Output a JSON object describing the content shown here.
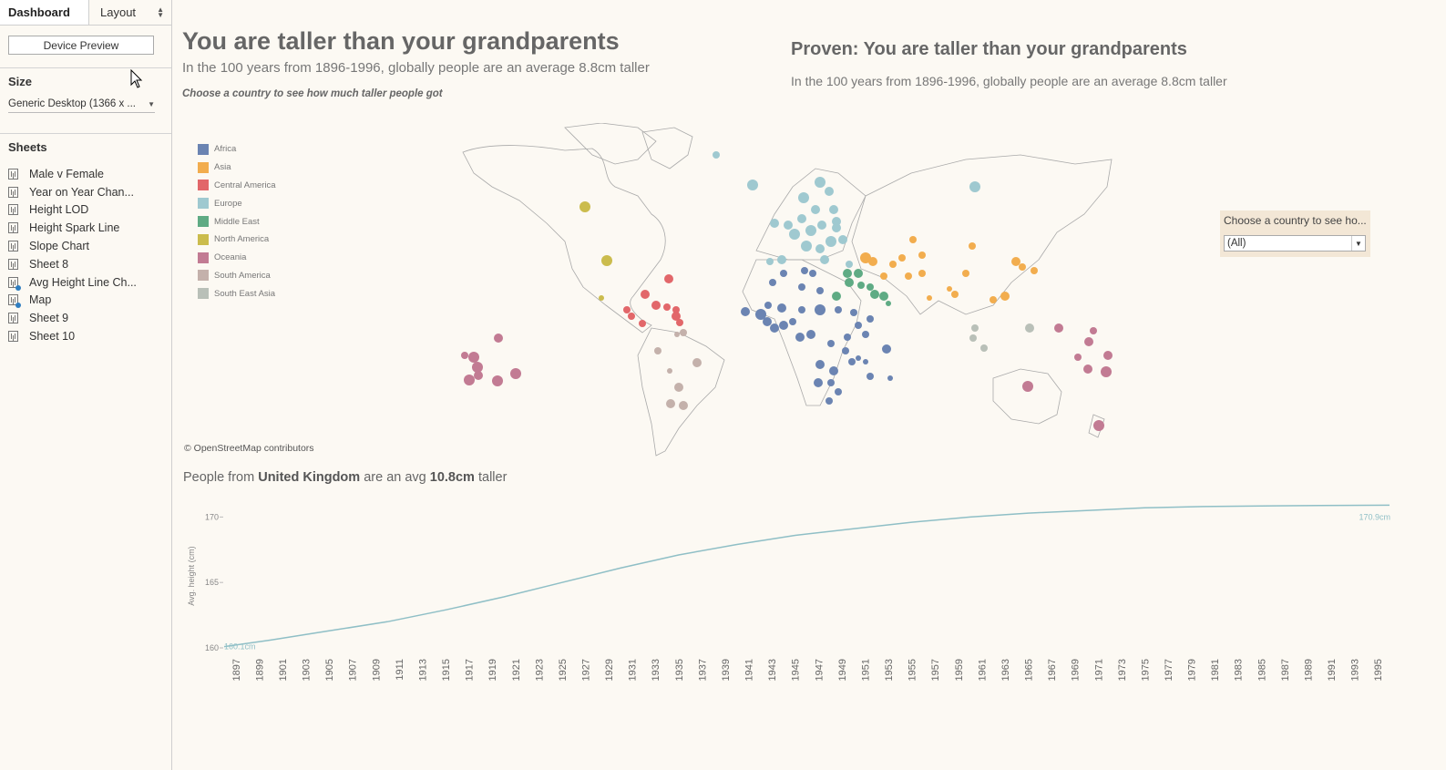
{
  "sidebar": {
    "tabs": {
      "dashboard": "Dashboard",
      "layout": "Layout"
    },
    "device_preview": "Device Preview",
    "size_label": "Size",
    "size_value": "Generic Desktop (1366 x ...",
    "sheets_label": "Sheets",
    "sheets": [
      {
        "label": "Male v Female"
      },
      {
        "label": "Year on Year Chan..."
      },
      {
        "label": "Height LOD"
      },
      {
        "label": "Height Spark Line"
      },
      {
        "label": "Slope Chart"
      },
      {
        "label": "Sheet 8"
      },
      {
        "label": "Avg Height Line Ch..."
      },
      {
        "label": "Map"
      },
      {
        "label": "Sheet 9"
      },
      {
        "label": "Sheet 10"
      }
    ]
  },
  "dashboard": {
    "title": "You are taller than your grandparents",
    "subtitle": "In the 100 years from 1896-1996, globally people are an average 8.8cm taller",
    "hint": "Choose a country to see how much taller people got",
    "right_title": "Proven: You are taller than your grandparents",
    "right_subtitle": "In the 100 years from 1896-1996, globally people are an average 8.8cm taller",
    "osm_credit": "© OpenStreetMap contributors",
    "filter": {
      "label": "Choose a country to see ho...",
      "value": "(All)"
    },
    "caption": {
      "prefix": "People from ",
      "country": "United Kingdom",
      "middle": " are an avg ",
      "amount": "10.8cm",
      "suffix": " taller"
    }
  },
  "legend": [
    {
      "label": "Africa",
      "color": "#6b84b2"
    },
    {
      "label": "Asia",
      "color": "#f2ad4e"
    },
    {
      "label": "Central America",
      "color": "#e2676a"
    },
    {
      "label": "Europe",
      "color": "#9fc9d0"
    },
    {
      "label": "Middle East",
      "color": "#5fab84"
    },
    {
      "label": "North America",
      "color": "#cbbc4d"
    },
    {
      "label": "Oceania",
      "color": "#c27b93"
    },
    {
      "label": "South America",
      "color": "#c4b1ab"
    },
    {
      "label": "South East Asia",
      "color": "#b9c0b8"
    }
  ],
  "chart_data": {
    "type": "line",
    "ylabel": "Avg. height (cm)",
    "ylim": [
      160,
      171
    ],
    "yticks": [
      160,
      165,
      170
    ],
    "xticks": [
      1897,
      1899,
      1901,
      1903,
      1905,
      1907,
      1909,
      1911,
      1913,
      1915,
      1917,
      1919,
      1921,
      1923,
      1925,
      1927,
      1929,
      1931,
      1933,
      1935,
      1937,
      1939,
      1941,
      1943,
      1945,
      1947,
      1949,
      1951,
      1953,
      1955,
      1957,
      1959,
      1961,
      1963,
      1965,
      1967,
      1969,
      1971,
      1973,
      1975,
      1977,
      1979,
      1981,
      1983,
      1985,
      1987,
      1989,
      1991,
      1993,
      1995
    ],
    "series": [
      {
        "x": [
          1896,
          1900,
          1905,
          1910,
          1915,
          1920,
          1925,
          1930,
          1935,
          1940,
          1945,
          1950,
          1955,
          1960,
          1965,
          1970,
          1975,
          1980,
          1985,
          1990,
          1996
        ],
        "y": [
          160.1,
          160.6,
          161.3,
          162.0,
          162.9,
          163.9,
          165.0,
          166.1,
          167.1,
          167.9,
          168.6,
          169.1,
          169.6,
          170.0,
          170.3,
          170.5,
          170.7,
          170.8,
          170.85,
          170.88,
          170.9
        ],
        "start_label": "160.1cm",
        "end_label": "170.9cm",
        "color": "#8fbfc6"
      }
    ]
  }
}
